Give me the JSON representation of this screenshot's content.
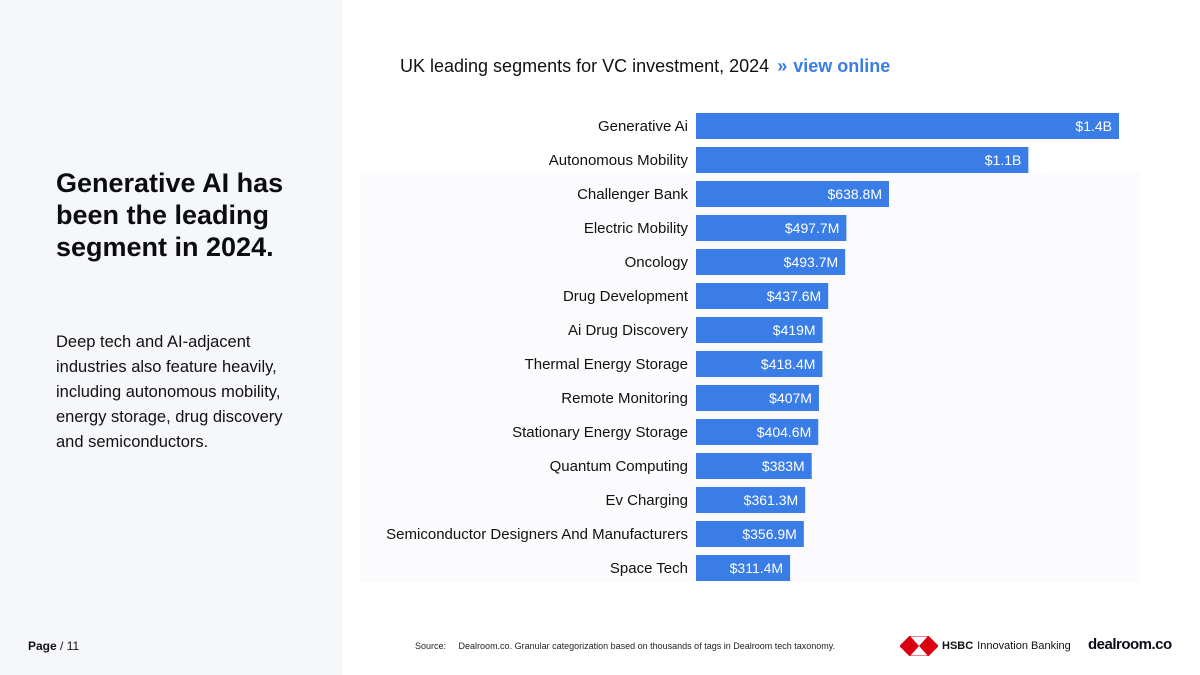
{
  "left": {
    "headline": "Generative AI has been the leading segment in 2024.",
    "body": "Deep tech and AI-adjacent industries also feature heavily, including autonomous mobility, energy storage, drug discovery and semiconductors."
  },
  "footer": {
    "page_label": "Page",
    "page_number": "/ 11",
    "source_label": "Source:",
    "source_text": "Dealroom.co. Granular categorization based on thousands of tags in Dealroom tech taxonomy.",
    "hsbc_brand": "HSBC",
    "hsbc_sub": "Innovation Banking",
    "dealroom_logo": "dealroom.co"
  },
  "chart_header": {
    "title": "UK leading segments for VC investment, 2024",
    "separator": "»",
    "link": "view online"
  },
  "colors": {
    "bar": "#3a7de6",
    "link": "#3a7de6",
    "hsbc_red": "#db0011"
  },
  "chart_data": {
    "type": "bar",
    "orientation": "horizontal",
    "title": "UK leading segments for VC investment, 2024",
    "xlabel": "",
    "ylabel": "",
    "unit": "USD millions",
    "xlim": [
      0,
      1400
    ],
    "categories": [
      "Generative Ai",
      "Autonomous Mobility",
      "Challenger Bank",
      "Electric Mobility",
      "Oncology",
      "Drug Development",
      "Ai Drug Discovery",
      "Thermal Energy Storage",
      "Remote Monitoring",
      "Stationary Energy Storage",
      "Quantum Computing",
      "Ev Charging",
      "Semiconductor Designers And Manufacturers",
      "Space Tech"
    ],
    "values": [
      1400,
      1100,
      638.8,
      497.7,
      493.7,
      437.6,
      419,
      418.4,
      407,
      404.6,
      383,
      361.3,
      356.9,
      311.4
    ],
    "labels": [
      "$1.4B",
      "$1.1B",
      "$638.8M",
      "$497.7M",
      "$493.7M",
      "$437.6M",
      "$419M",
      "$418.4M",
      "$407M",
      "$404.6M",
      "$383M",
      "$361.3M",
      "$356.9M",
      "$311.4M"
    ]
  }
}
